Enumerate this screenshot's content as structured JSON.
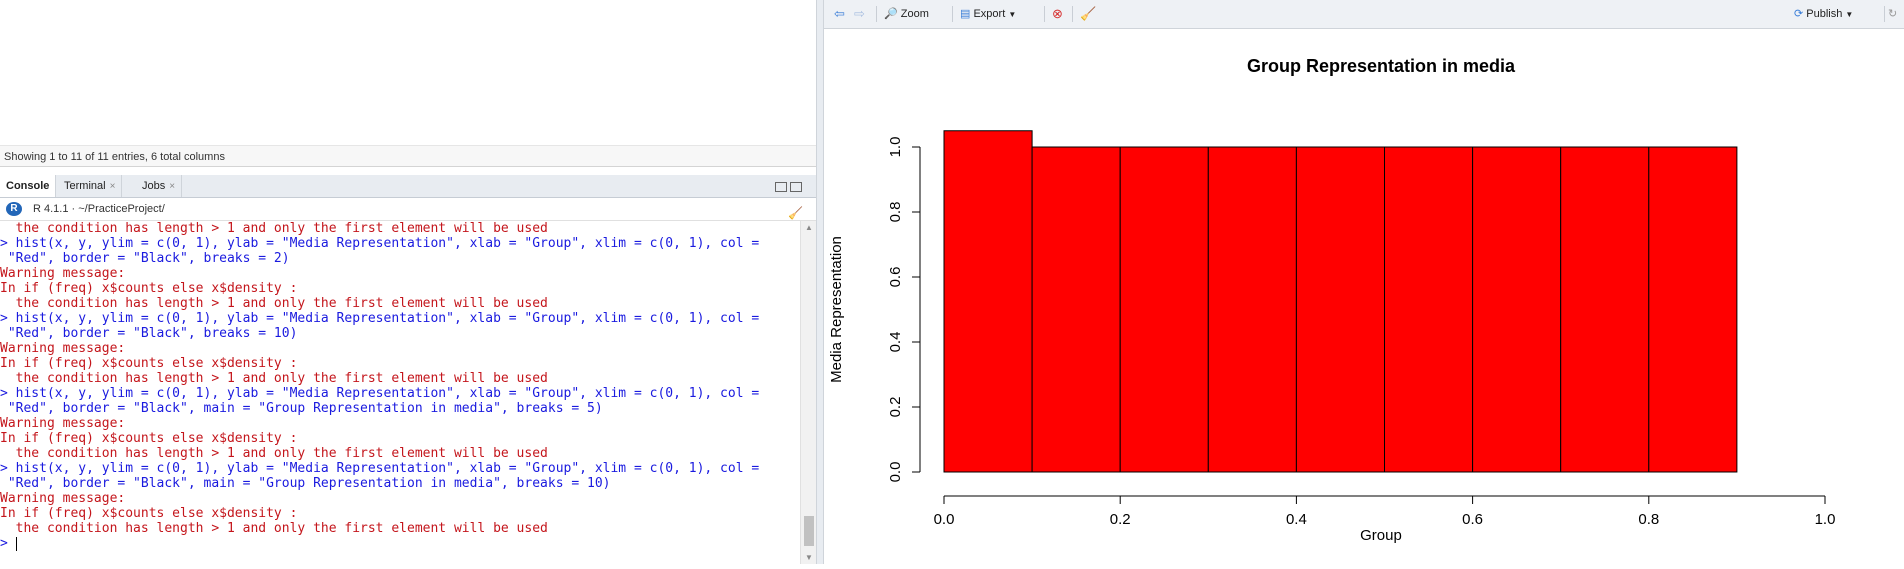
{
  "viewer": {
    "entries_text": "Showing 1 to 11 of 11 entries, 6 total columns"
  },
  "tabs": [
    {
      "label": "Console",
      "active": true
    },
    {
      "label": "Terminal",
      "active": false
    },
    {
      "label": "Jobs",
      "active": false
    }
  ],
  "console_header": {
    "r_version": "R 4.1.1",
    "path": "· ~/PracticeProject/"
  },
  "console_lines": [
    {
      "text": "  the condition has length > 1 and only the first element will be used",
      "color": "red"
    },
    {
      "text": "> hist(x, y, ylim = c(0, 1), ylab = \"Media Representation\", xlab = \"Group\", xlim = c(0, 1), col =",
      "color": "blue"
    },
    {
      "text": " \"Red\", border = \"Black\", breaks = 2)",
      "color": "blue"
    },
    {
      "text": "Warning message:",
      "color": "red"
    },
    {
      "text": "In if (freq) x$counts else x$density :",
      "color": "red"
    },
    {
      "text": "  the condition has length > 1 and only the first element will be used",
      "color": "red"
    },
    {
      "text": "> hist(x, y, ylim = c(0, 1), ylab = \"Media Representation\", xlab = \"Group\", xlim = c(0, 1), col =",
      "color": "blue"
    },
    {
      "text": " \"Red\", border = \"Black\", breaks = 10)",
      "color": "blue"
    },
    {
      "text": "Warning message:",
      "color": "red"
    },
    {
      "text": "In if (freq) x$counts else x$density :",
      "color": "red"
    },
    {
      "text": "  the condition has length > 1 and only the first element will be used",
      "color": "red"
    },
    {
      "text": "> hist(x, y, ylim = c(0, 1), ylab = \"Media Representation\", xlab = \"Group\", xlim = c(0, 1), col =",
      "color": "blue"
    },
    {
      "text": " \"Red\", border = \"Black\", main = \"Group Representation in media\", breaks = 5)",
      "color": "blue"
    },
    {
      "text": "Warning message:",
      "color": "red"
    },
    {
      "text": "In if (freq) x$counts else x$density :",
      "color": "red"
    },
    {
      "text": "  the condition has length > 1 and only the first element will be used",
      "color": "red"
    },
    {
      "text": "> hist(x, y, ylim = c(0, 1), ylab = \"Media Representation\", xlab = \"Group\", xlim = c(0, 1), col =",
      "color": "blue"
    },
    {
      "text": " \"Red\", border = \"Black\", main = \"Group Representation in media\", breaks = 10)",
      "color": "blue"
    },
    {
      "text": "Warning message:",
      "color": "red"
    },
    {
      "text": "In if (freq) x$counts else x$density :",
      "color": "red"
    },
    {
      "text": "  the condition has length > 1 and only the first element will be used",
      "color": "red"
    }
  ],
  "prompt": ">",
  "plots_toolbar": {
    "back_icon": "arrow-left-icon",
    "forward_icon": "arrow-right-icon",
    "zoom_label": "Zoom",
    "export_label": "Export",
    "publish_label": "Publish"
  },
  "chart_data": {
    "type": "bar",
    "title": "Group Representation in media",
    "xlabel": "Group",
    "ylabel": "Media Representation",
    "xlim": [
      0,
      1
    ],
    "ylim": [
      0,
      1
    ],
    "bar_color": "#ff0000",
    "border_color": "#000000",
    "bins": [
      {
        "x0": 0.0,
        "x1": 0.1,
        "value": 1.05
      },
      {
        "x0": 0.1,
        "x1": 0.2,
        "value": 1.0
      },
      {
        "x0": 0.2,
        "x1": 0.3,
        "value": 1.0
      },
      {
        "x0": 0.3,
        "x1": 0.4,
        "value": 1.0
      },
      {
        "x0": 0.4,
        "x1": 0.5,
        "value": 1.0
      },
      {
        "x0": 0.5,
        "x1": 0.6,
        "value": 1.0
      },
      {
        "x0": 0.6,
        "x1": 0.7,
        "value": 1.0
      },
      {
        "x0": 0.7,
        "x1": 0.8,
        "value": 1.0
      },
      {
        "x0": 0.8,
        "x1": 0.9,
        "value": 1.0
      }
    ],
    "x_ticks": [
      "0.0",
      "0.2",
      "0.4",
      "0.6",
      "0.8",
      "1.0"
    ],
    "y_ticks": [
      "0.0",
      "0.2",
      "0.4",
      "0.6",
      "0.8",
      "1.0"
    ]
  }
}
